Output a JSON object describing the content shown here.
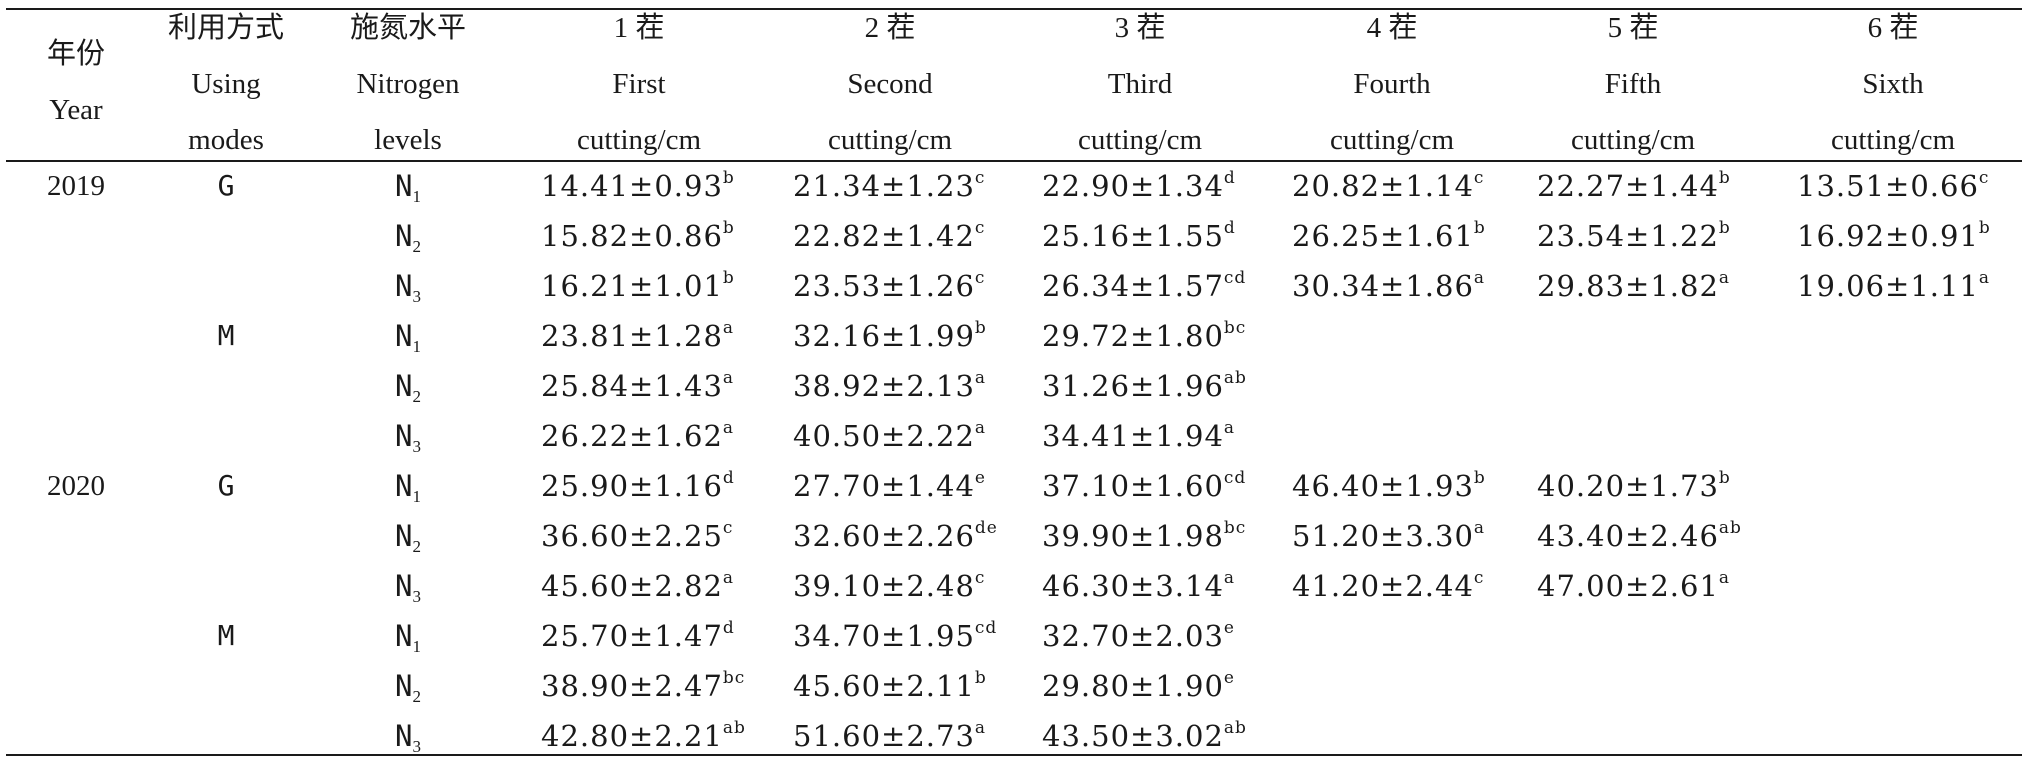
{
  "header": {
    "year": [
      "年份",
      "Year"
    ],
    "using": [
      "利用方式",
      "Using",
      "modes"
    ],
    "nitrogen": [
      "施氮水平",
      "Nitrogen",
      "levels"
    ],
    "cuttings": [
      [
        "1 茬",
        "First",
        "cutting/cm"
      ],
      [
        "2 茬",
        "Second",
        "cutting/cm"
      ],
      [
        "3 茬",
        "Third",
        "cutting/cm"
      ],
      [
        "4 茬",
        "Fourth",
        "cutting/cm"
      ],
      [
        "5 茬",
        "Fifth",
        "cutting/cm"
      ],
      [
        "6 茬",
        "Sixth",
        "cutting/cm"
      ]
    ]
  },
  "rows": [
    {
      "year": "2019",
      "mode": "G",
      "n": "N",
      "nsub": "1",
      "cells": [
        [
          "14.41±0.93",
          "b"
        ],
        [
          "21.34±1.23",
          "c"
        ],
        [
          "22.90±1.34",
          "d"
        ],
        [
          "20.82±1.14",
          "c"
        ],
        [
          "22.27±1.44",
          "b"
        ],
        [
          "13.51±0.66",
          "c"
        ]
      ]
    },
    {
      "year": "",
      "mode": "",
      "n": "N",
      "nsub": "2",
      "cells": [
        [
          "15.82±0.86",
          "b"
        ],
        [
          "22.82±1.42",
          "c"
        ],
        [
          "25.16±1.55",
          "d"
        ],
        [
          "26.25±1.61",
          "b"
        ],
        [
          "23.54±1.22",
          "b"
        ],
        [
          "16.92±0.91",
          "b"
        ]
      ]
    },
    {
      "year": "",
      "mode": "",
      "n": "N",
      "nsub": "3",
      "cells": [
        [
          "16.21±1.01",
          "b"
        ],
        [
          "23.53±1.26",
          "c"
        ],
        [
          "26.34±1.57",
          "cd"
        ],
        [
          "30.34±1.86",
          "a"
        ],
        [
          "29.83±1.82",
          "a"
        ],
        [
          "19.06±1.11",
          "a"
        ]
      ]
    },
    {
      "year": "",
      "mode": "M",
      "n": "N",
      "nsub": "1",
      "cells": [
        [
          "23.81±1.28",
          "a"
        ],
        [
          "32.16±1.99",
          "b"
        ],
        [
          "29.72±1.80",
          "bc"
        ]
      ]
    },
    {
      "year": "",
      "mode": "",
      "n": "N",
      "nsub": "2",
      "cells": [
        [
          "25.84±1.43",
          "a"
        ],
        [
          "38.92±2.13",
          "a"
        ],
        [
          "31.26±1.96",
          "ab"
        ]
      ]
    },
    {
      "year": "",
      "mode": "",
      "n": "N",
      "nsub": "3",
      "cells": [
        [
          "26.22±1.62",
          "a"
        ],
        [
          "40.50±2.22",
          "a"
        ],
        [
          "34.41±1.94",
          "a"
        ]
      ]
    },
    {
      "year": "2020",
      "mode": "G",
      "n": "N",
      "nsub": "1",
      "cells": [
        [
          "25.90±1.16",
          "d"
        ],
        [
          "27.70±1.44",
          "e"
        ],
        [
          "37.10±1.60",
          "cd"
        ],
        [
          "46.40±1.93",
          "b"
        ],
        [
          "40.20±1.73",
          "b"
        ]
      ]
    },
    {
      "year": "",
      "mode": "",
      "n": "N",
      "nsub": "2",
      "cells": [
        [
          "36.60±2.25",
          "c"
        ],
        [
          "32.60±2.26",
          "de"
        ],
        [
          "39.90±1.98",
          "bc"
        ],
        [
          "51.20±3.30",
          "a"
        ],
        [
          "43.40±2.46",
          "ab"
        ]
      ]
    },
    {
      "year": "",
      "mode": "",
      "n": "N",
      "nsub": "3",
      "cells": [
        [
          "45.60±2.82",
          "a"
        ],
        [
          "39.10±2.48",
          "c"
        ],
        [
          "46.30±3.14",
          "a"
        ],
        [
          "41.20±2.44",
          "c"
        ],
        [
          "47.00±2.61",
          "a"
        ]
      ]
    },
    {
      "year": "",
      "mode": "M",
      "n": "N",
      "nsub": "1",
      "cells": [
        [
          "25.70±1.47",
          "d"
        ],
        [
          "34.70±1.95",
          "cd"
        ],
        [
          "32.70±2.03",
          "e"
        ]
      ]
    },
    {
      "year": "",
      "mode": "",
      "n": "N",
      "nsub": "2",
      "cells": [
        [
          "38.90±2.47",
          "bc"
        ],
        [
          "45.60±2.11",
          "b"
        ],
        [
          "29.80±1.90",
          "e"
        ]
      ]
    },
    {
      "year": "",
      "mode": "",
      "n": "N",
      "nsub": "3",
      "cells": [
        [
          "42.80±2.21",
          "ab"
        ],
        [
          "51.60±2.73",
          "a"
        ],
        [
          "43.50±3.02",
          "ab"
        ]
      ]
    }
  ]
}
